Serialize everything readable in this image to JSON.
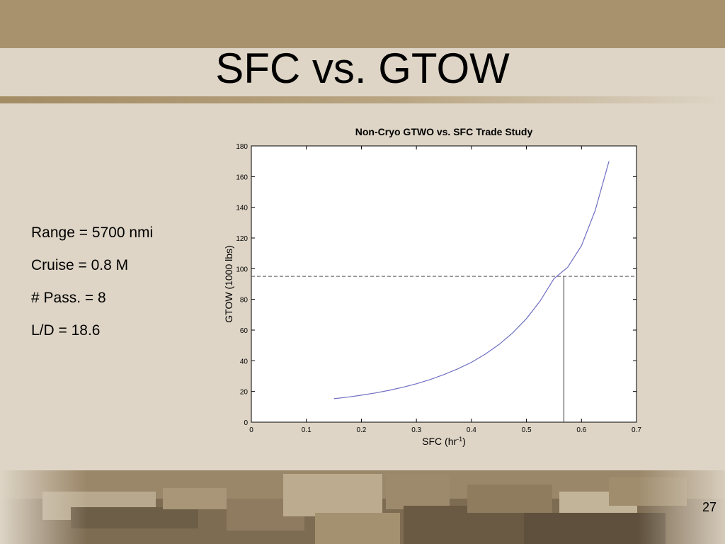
{
  "slide": {
    "title": "SFC vs. GTOW",
    "page_number": "27",
    "background_color": "#ded5c6",
    "accent_color": "#a8926e"
  },
  "params": [
    {
      "text": "Range = 5700 nmi"
    },
    {
      "text": "Cruise = 0.8 M"
    },
    {
      "text": "# Pass. = 8"
    },
    {
      "text": "L/D = 18.6"
    }
  ],
  "chart_data": {
    "type": "line",
    "title": "Non-Cryo GTWO vs. SFC Trade Study",
    "xlabel": "SFC (hr",
    "xlabel_superscript": "-1",
    "xlabel_suffix": ")",
    "ylabel": "GTOW (1000 lbs)",
    "xlim": [
      0,
      0.7
    ],
    "ylim": [
      0,
      180
    ],
    "xticks": [
      0,
      0.1,
      0.2,
      0.3,
      0.4,
      0.5,
      0.6,
      0.7
    ],
    "xtick_labels": [
      "0",
      "0.1",
      "0.2",
      "0.3",
      "0.4",
      "0.5",
      "0.6",
      "0.7"
    ],
    "yticks": [
      0,
      20,
      40,
      60,
      80,
      100,
      120,
      140,
      160,
      180
    ],
    "ytick_labels": [
      "0",
      "20",
      "40",
      "60",
      "80",
      "100",
      "120",
      "140",
      "160",
      "180"
    ],
    "grid": false,
    "series": [
      {
        "color": "#6f6fc4",
        "x": [
          0.15,
          0.175,
          0.2,
          0.225,
          0.25,
          0.275,
          0.3,
          0.325,
          0.35,
          0.375,
          0.4,
          0.425,
          0.45,
          0.475,
          0.5,
          0.525,
          0.55,
          0.575,
          0.6,
          0.625,
          0.65
        ],
        "y": [
          15.3,
          16.3,
          17.6,
          19.0,
          20.7,
          22.7,
          25.0,
          27.8,
          31.0,
          34.7,
          39.0,
          44.3,
          50.6,
          58.2,
          67.5,
          79.0,
          93.5,
          101.0,
          115.0,
          138.0,
          170.0
        ]
      }
    ],
    "reference_lines": [
      {
        "orientation": "horizontal",
        "y": 95,
        "style": "dashed",
        "color": "#555555"
      },
      {
        "orientation": "vertical",
        "x": 0.568,
        "y_to": 95,
        "style": "solid",
        "color": "#555555"
      }
    ]
  }
}
